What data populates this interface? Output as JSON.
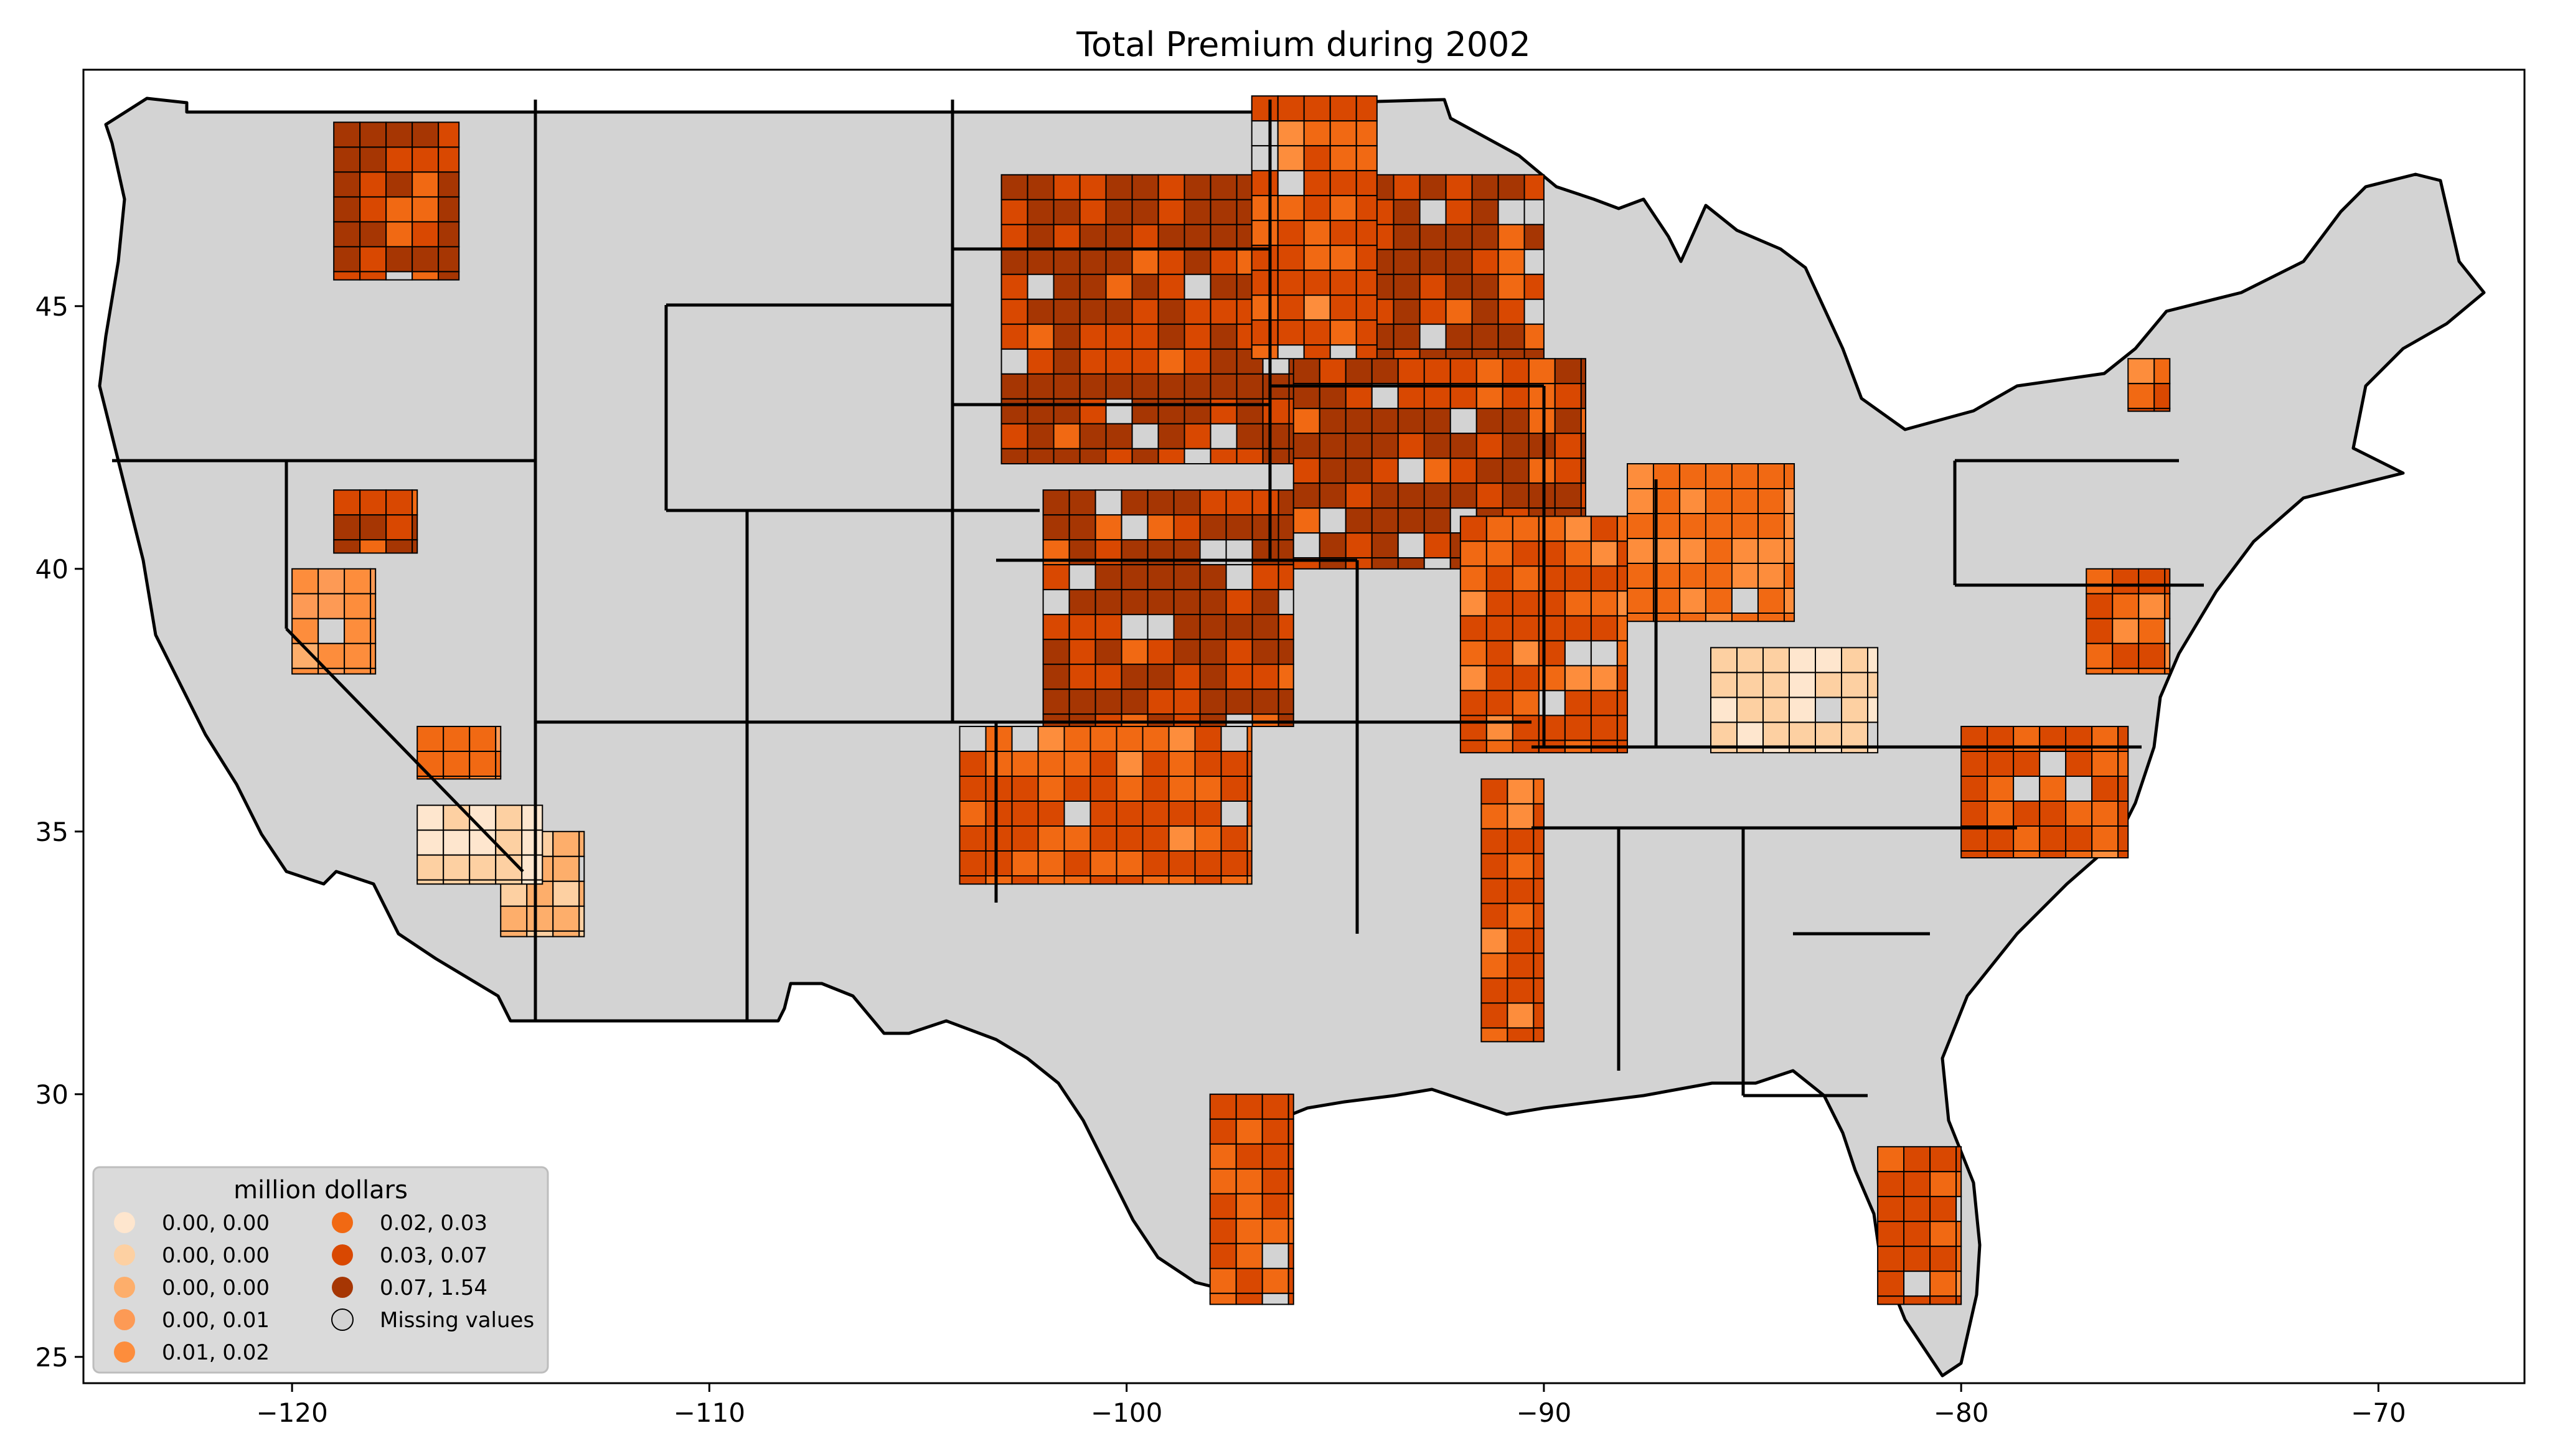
{
  "title": "Total  Premium during 2002",
  "axes": {
    "x": {
      "range": [
        -125,
        -66.5
      ],
      "ticks": [
        {
          "value": -120,
          "label": "−120"
        },
        {
          "value": -110,
          "label": "−110"
        },
        {
          "value": -100,
          "label": "−100"
        },
        {
          "value": -90,
          "label": "−90"
        },
        {
          "value": -80,
          "label": "−80"
        },
        {
          "value": -70,
          "label": "−70"
        }
      ]
    },
    "y": {
      "range": [
        24.5,
        49.5
      ],
      "ticks": [
        {
          "value": 25,
          "label": "25"
        },
        {
          "value": 30,
          "label": "30"
        },
        {
          "value": 35,
          "label": "35"
        },
        {
          "value": 40,
          "label": "40"
        },
        {
          "value": 45,
          "label": "45"
        }
      ]
    }
  },
  "legend": {
    "title": "million dollars",
    "placement": "lower-left",
    "items": [
      {
        "label": "0.00, 0.00",
        "color": "#fee6ce"
      },
      {
        "label": "0.00, 0.00",
        "color": "#fdd0a2"
      },
      {
        "label": "0.00, 0.00",
        "color": "#fdae6b"
      },
      {
        "label": "0.00, 0.01",
        "color": "#fd9a55"
      },
      {
        "label": "0.01, 0.02",
        "color": "#fd8d3c"
      },
      {
        "label": "0.02, 0.03",
        "color": "#f16913"
      },
      {
        "label": "0.03, 0.07",
        "color": "#d94801"
      },
      {
        "label": "0.07, 1.54",
        "color": "#a63603"
      },
      {
        "label": "Missing values",
        "color": "#d3d3d3"
      }
    ]
  },
  "map": {
    "missing_color": "#d3d3d3",
    "border_color": "#000000",
    "type": "choropleth of US counties, lat/lon axes"
  },
  "chart_data": {
    "type": "heatmap",
    "title": "Total  Premium during 2002",
    "xlim": [
      -125,
      -66.5
    ],
    "ylim": [
      24.5,
      49.5
    ],
    "legend_title": "million dollars",
    "classes": [
      "0.00, 0.00",
      "0.00, 0.00",
      "0.00, 0.00",
      "0.00, 0.01",
      "0.01, 0.02",
      "0.02, 0.03",
      "0.03, 0.07",
      "0.07, 1.54",
      "Missing values"
    ],
    "regions": [
      {
        "lon": [
          -103,
          -90
        ],
        "lat": [
          42,
          47.5
        ],
        "class": 7
      },
      {
        "lon": [
          -102,
          -96
        ],
        "lat": [
          37,
          41.5
        ],
        "class": 7
      },
      {
        "lon": [
          -96,
          -89
        ],
        "lat": [
          40,
          44
        ],
        "class": 7
      },
      {
        "lon": [
          -92,
          -88
        ],
        "lat": [
          36.5,
          41
        ],
        "class": 6
      },
      {
        "lon": [
          -104,
          -97
        ],
        "lat": [
          34,
          37
        ],
        "class": 6
      },
      {
        "lon": [
          -97,
          -94
        ],
        "lat": [
          44,
          49
        ],
        "class": 6
      },
      {
        "lon": [
          -91.5,
          -90
        ],
        "lat": [
          31,
          36
        ],
        "class": 6
      },
      {
        "lon": [
          -119,
          -116
        ],
        "lat": [
          45.5,
          48.5
        ],
        "class": 7
      },
      {
        "lon": [
          -119,
          -117
        ],
        "lat": [
          40.3,
          41.5
        ],
        "class": 7
      },
      {
        "lon": [
          -80,
          -76
        ],
        "lat": [
          34.5,
          37
        ],
        "class": 6
      },
      {
        "lon": [
          -82,
          -80
        ],
        "lat": [
          26,
          29
        ],
        "class": 6
      },
      {
        "lon": [
          -98,
          -96
        ],
        "lat": [
          26,
          30
        ],
        "class": 6
      },
      {
        "lon": [
          -117,
          -115
        ],
        "lat": [
          36,
          37
        ],
        "class": 5
      },
      {
        "lon": [
          -120,
          -118
        ],
        "lat": [
          38,
          40
        ],
        "class": 4
      },
      {
        "lon": [
          -115,
          -113
        ],
        "lat": [
          33,
          35
        ],
        "class": 2
      },
      {
        "lon": [
          -117,
          -114
        ],
        "lat": [
          34,
          35.5
        ],
        "class": 1
      },
      {
        "lon": [
          -86,
          -82
        ],
        "lat": [
          36.5,
          38.5
        ],
        "class": 1
      },
      {
        "lon": [
          -77,
          -75
        ],
        "lat": [
          38,
          40
        ],
        "class": 6
      },
      {
        "lon": [
          -76,
          -75
        ],
        "lat": [
          43,
          44
        ],
        "class": 6
      },
      {
        "lon": [
          -88,
          -84
        ],
        "lat": [
          39,
          42
        ],
        "class": 5
      }
    ]
  }
}
